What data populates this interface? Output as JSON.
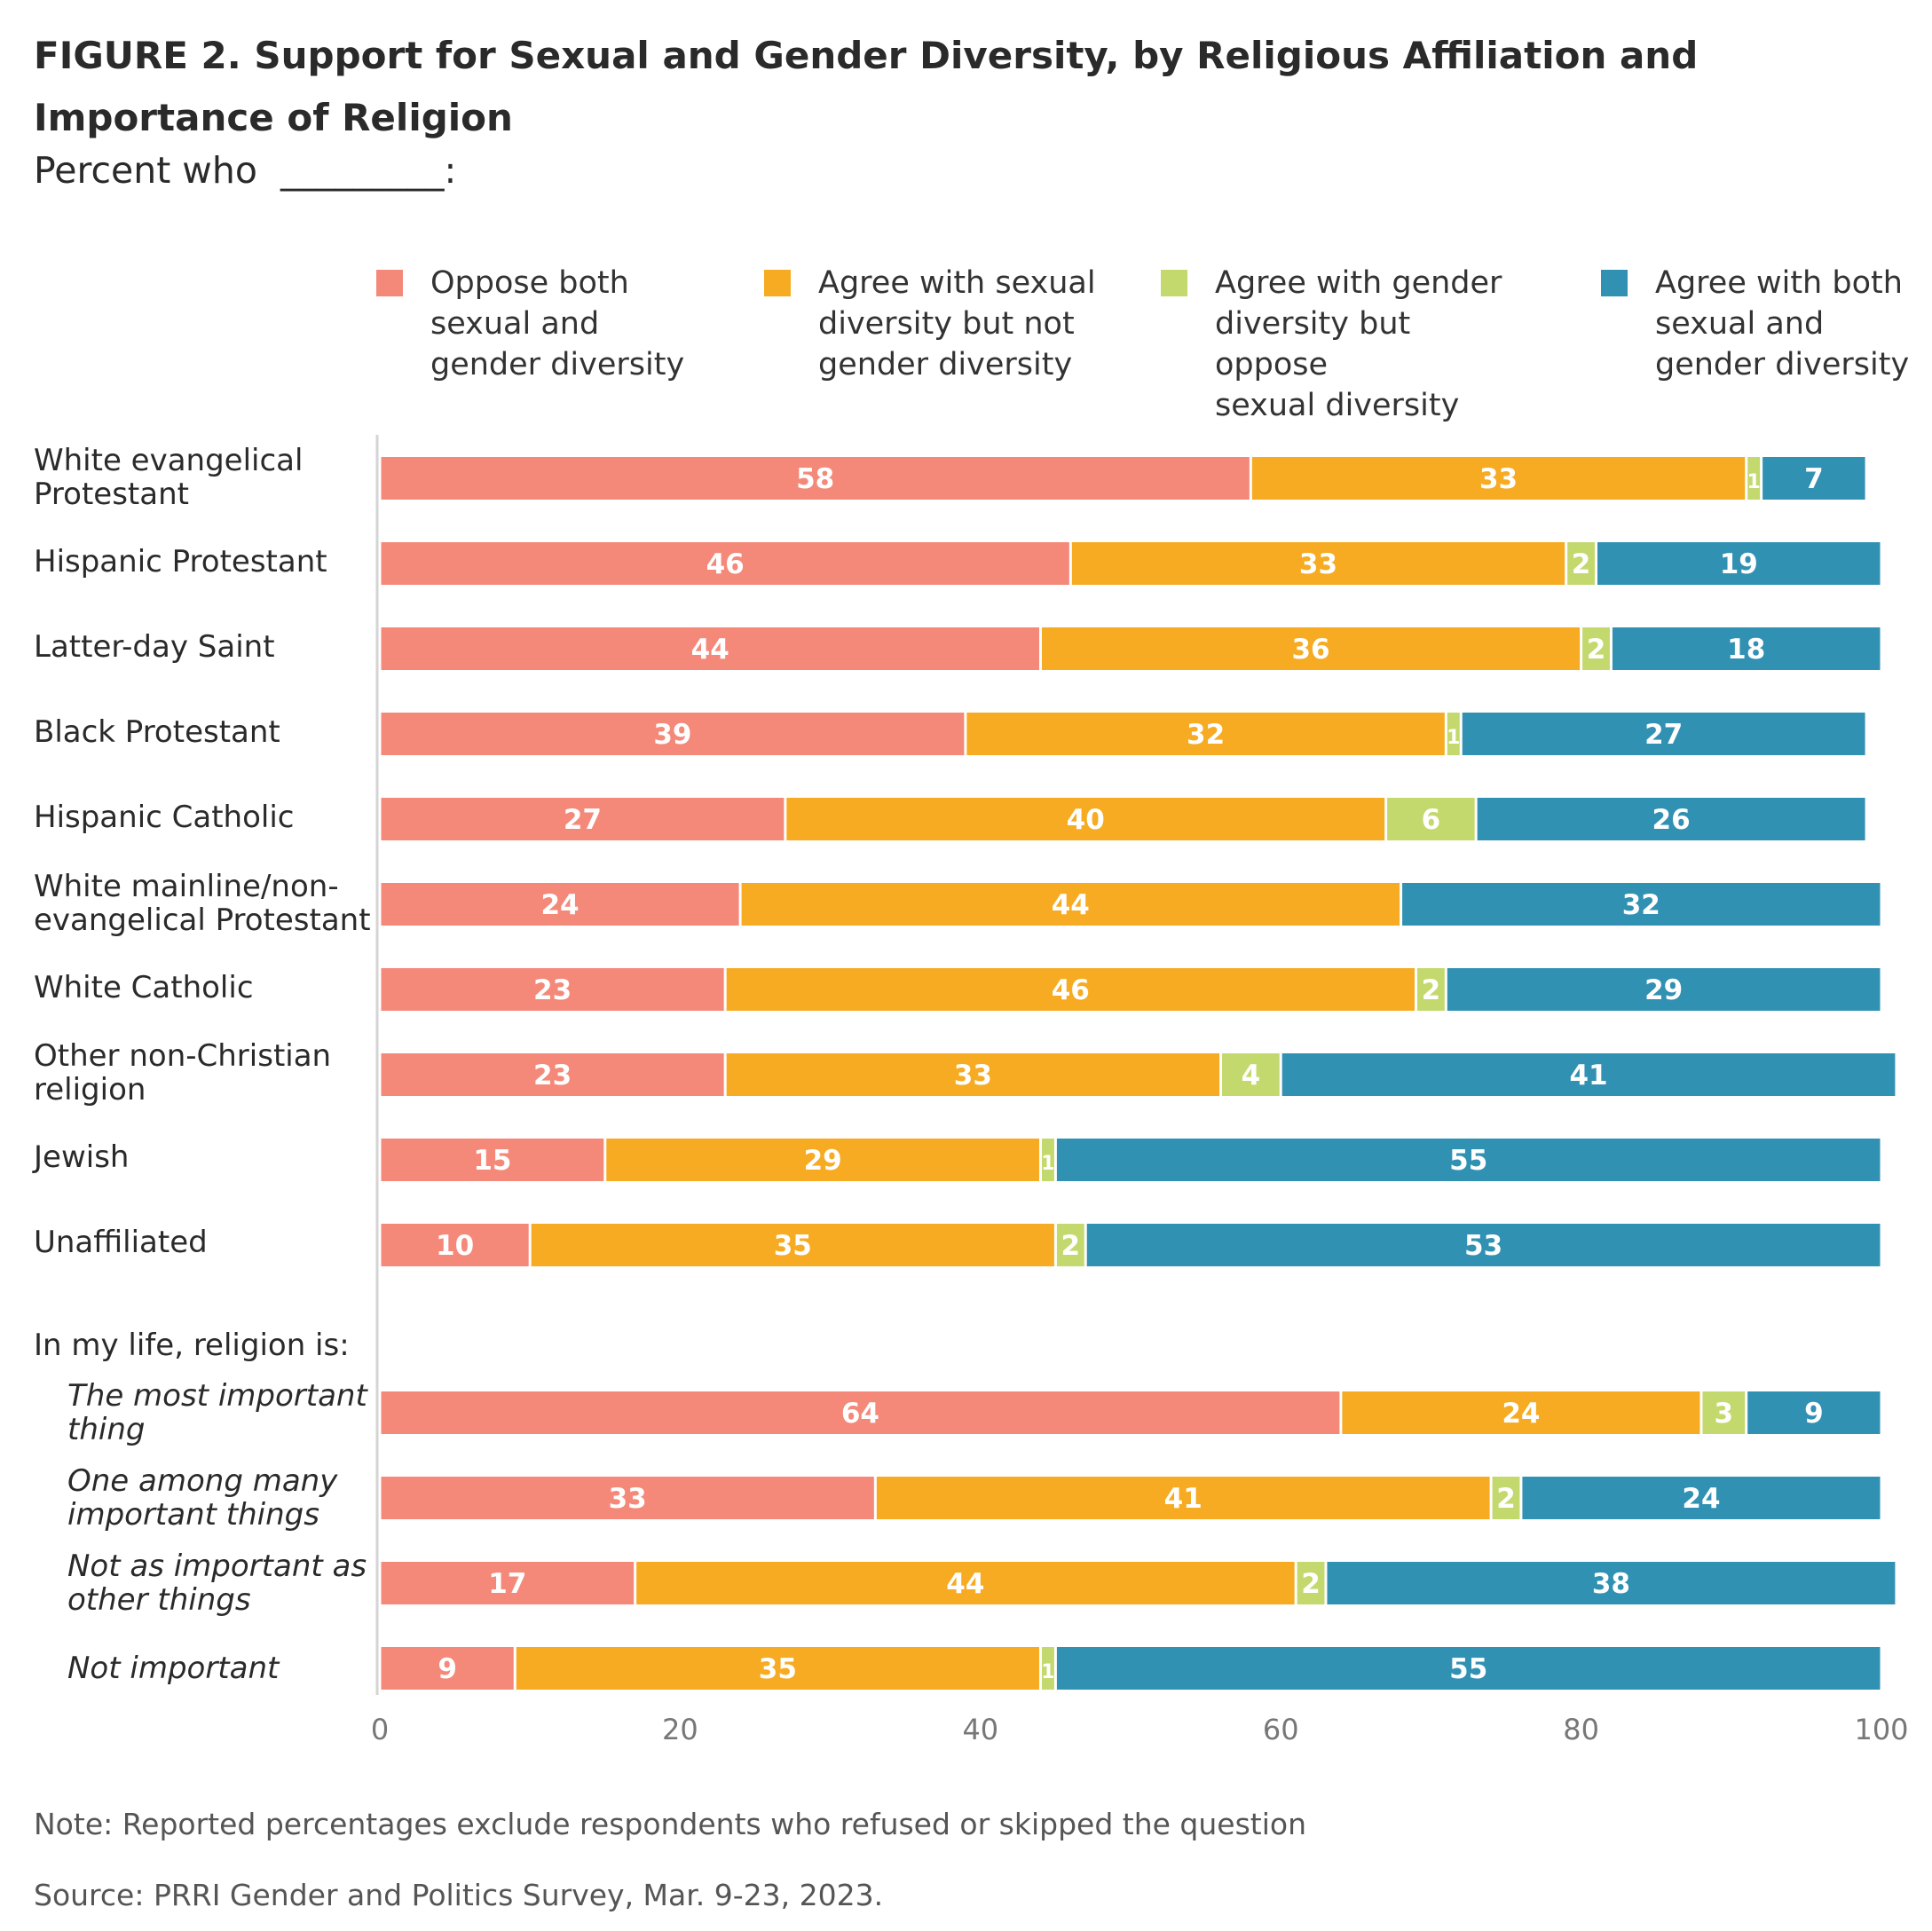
{
  "title": "FIGURE 2.  Support for Sexual and Gender Diversity, by Religious Affiliation and Importance of Religion",
  "subtitle": "Percent who  _________:",
  "note": "Note: Reported percentages exclude respondents who refused or skipped the question",
  "source": "Source: PRRI Gender and Politics Survey, Mar. 9-23, 2023.",
  "chart_data": {
    "type": "bar",
    "orientation": "horizontal",
    "stacked": true,
    "xlim": [
      0,
      100
    ],
    "x_ticks": [
      "0",
      "20",
      "40",
      "60",
      "80",
      "100"
    ],
    "grid": false,
    "legend_position": "top",
    "group_header": "In my life, religion is:",
    "categories": [
      "White evangelical\nProtestant",
      "Hispanic Protestant",
      "Latter-day Saint",
      "Black Protestant",
      "Hispanic Catholic",
      "White mainline/non-\nevangelical Protestant",
      "White Catholic",
      "Other non-Christian\nreligion",
      "Jewish",
      "Unaffiliated",
      "The most important\nthing",
      "One among many\nimportant things",
      "Not as important as\nother things",
      "Not important"
    ],
    "series": [
      {
        "name": "Oppose both\nsexual and\ngender diversity",
        "color": "#f4897a",
        "values": [
          58,
          46,
          44,
          39,
          27,
          24,
          23,
          23,
          15,
          10,
          64,
          33,
          17,
          9
        ]
      },
      {
        "name": "Agree with sexual\ndiversity but not\ngender diversity",
        "color": "#f6ab22",
        "values": [
          33,
          33,
          36,
          32,
          40,
          44,
          46,
          33,
          29,
          35,
          24,
          41,
          44,
          35
        ]
      },
      {
        "name": "Agree with gender\ndiversity but oppose\nsexual diversity",
        "color": "#c3d96e",
        "values": [
          1,
          2,
          2,
          1,
          6,
          null,
          2,
          4,
          1,
          2,
          3,
          2,
          2,
          1
        ]
      },
      {
        "name": "Agree with both\nsexual and\ngender diversity",
        "color": "#3191b3",
        "values": [
          7,
          19,
          18,
          27,
          26,
          32,
          29,
          41,
          55,
          53,
          9,
          24,
          38,
          55
        ]
      }
    ]
  }
}
